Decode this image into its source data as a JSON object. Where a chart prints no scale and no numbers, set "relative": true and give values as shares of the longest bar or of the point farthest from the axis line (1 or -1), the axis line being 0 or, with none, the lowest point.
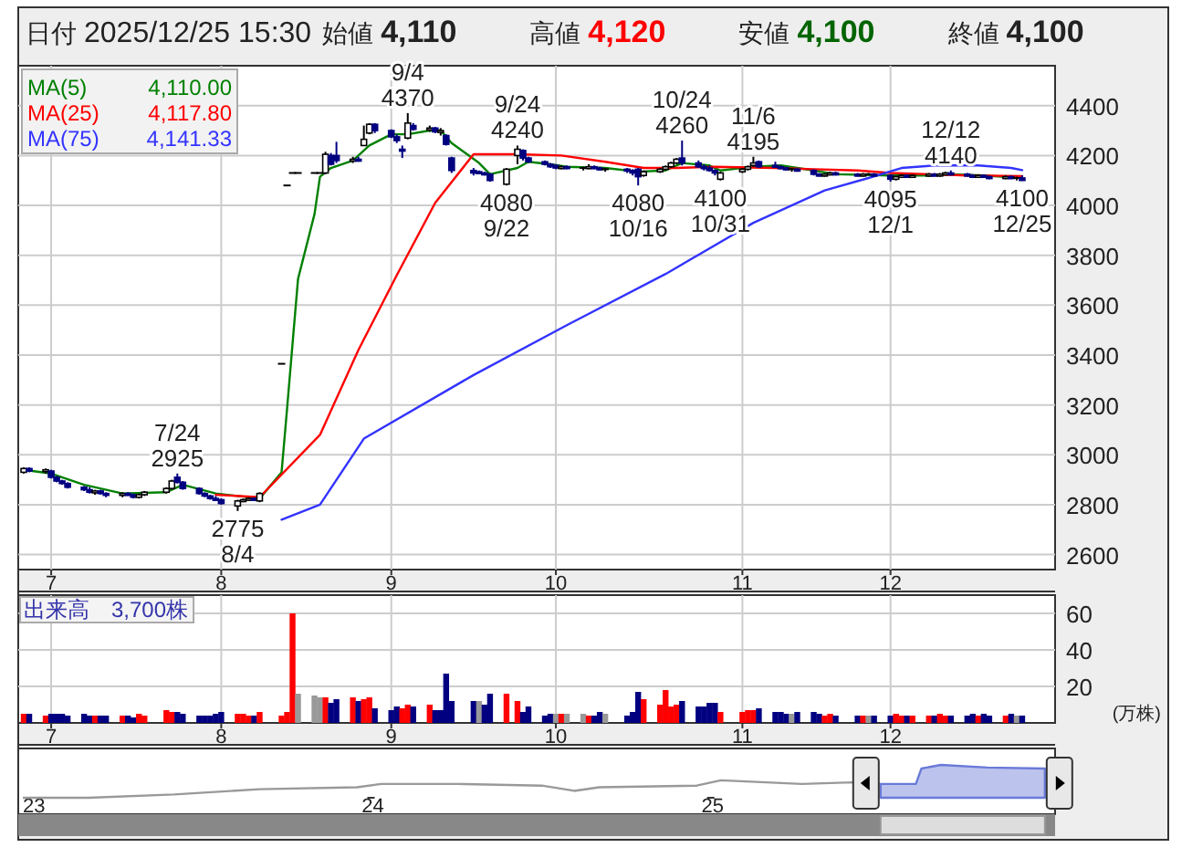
{
  "chart_data": [
    {
      "type": "other",
      "categories": [
        "日付",
        "始値",
        "高値",
        "安値",
        "終値"
      ],
      "values": [
        null,
        4110,
        4120,
        4100,
        4100
      ],
      "value_labels": [
        "2025/12/25 15:30",
        "4,110",
        "4,120",
        "4,100",
        "4,100"
      ],
      "colors": [
        "#222222",
        "#222222",
        "#ff0000",
        "#006400",
        "#222222"
      ]
    },
    {
      "type": "candlestick",
      "colors": [
        "#ffffff",
        "#000080",
        "#ffffff",
        "#000080",
        "#000080",
        "#000080",
        "#000080",
        "#000080",
        "#000080",
        "#ffffff",
        "#000080",
        "#000080",
        "#ffffff",
        "#000080",
        "#000080",
        "#ffffff",
        "#ffffff",
        "#ffffff",
        "#ffffff",
        "#000080",
        "#000080",
        "#000080",
        "#000080",
        "#000080",
        "#000080",
        "#000080",
        "#ffffff",
        "#ffffff",
        "#ffffff",
        "#000080",
        "#ffffff",
        "#000000",
        "#000000",
        "#000000",
        "#000000",
        "#000000",
        "#000000",
        "#ffffff",
        "#000080",
        "#000080",
        "#ffffff",
        "#000080",
        "#ffffff",
        "#ffffff",
        "#000080",
        "#000080",
        "#000080",
        "#000080",
        "#ffffff",
        "#000080",
        "#ffffff",
        "#000080",
        "#ffffff",
        "#000080",
        "#000080",
        "#000080",
        "#000080",
        "#000080",
        "#000080",
        "#ffffff",
        "#ffffff",
        "#000080",
        "#000080",
        "#000080",
        "#000080",
        "#000080",
        "#ffffff",
        "#000080",
        "#000000",
        "#ffffff",
        "#000080",
        "#000080",
        "#000000",
        "#000080",
        "#000080",
        "#000080",
        "#ffffff",
        "#ffffff",
        "#ffffff",
        "#ffffff",
        "#ffffff",
        "#000080",
        "#000080",
        "#000080",
        "#000080",
        "#000080",
        "#ffffff",
        "#ffffff",
        "#ffffff",
        "#ffffff",
        "#000080",
        "#000080",
        "#000080",
        "#000080",
        "#000000",
        "#000080",
        "#000080",
        "#000080",
        "#ffffff",
        "#ffffff",
        "#000080",
        "#000080",
        "#ffffff",
        "#000000",
        "#000080",
        "#000080",
        "#ffffff",
        "#ffffff",
        "#000080",
        "#ffffff",
        "#ffffff",
        "#000080",
        "#ffffff",
        "#ffffff",
        "#000080",
        "#000080",
        "#000080",
        "#ffffff",
        "#000080",
        "#000080",
        "#ffffff",
        "#000080",
        "#000000",
        "#000080"
      ],
      "x": [
        "2025-06-26",
        "2025-06-27",
        "2025-06-30",
        "2025-07-01",
        "2025-07-02",
        "2025-07-03",
        "2025-07-04",
        "2025-07-07",
        "2025-07-08",
        "2025-07-09",
        "2025-07-10",
        "2025-07-11",
        "2025-07-14",
        "2025-07-15",
        "2025-07-16",
        "2025-07-17",
        "2025-07-18",
        "2025-07-22",
        "2025-07-23",
        "2025-07-24",
        "2025-07-25",
        "2025-07-28",
        "2025-07-29",
        "2025-07-30",
        "2025-07-31",
        "2025-08-01",
        "2025-08-04",
        "2025-08-05",
        "2025-08-06",
        "2025-08-07",
        "2025-08-08",
        "2025-08-12",
        "2025-08-13",
        "2025-08-14",
        "2025-08-15",
        "2025-08-18",
        "2025-08-19",
        "2025-08-20",
        "2025-08-21",
        "2025-08-22",
        "2025-08-25",
        "2025-08-26",
        "2025-08-27",
        "2025-08-28",
        "2025-08-29",
        "2025-09-01",
        "2025-09-02",
        "2025-09-03",
        "2025-09-04",
        "2025-09-05",
        "2025-09-08",
        "2025-09-09",
        "2025-09-10",
        "2025-09-11",
        "2025-09-12",
        "2025-09-16",
        "2025-09-17",
        "2025-09-18",
        "2025-09-19",
        "2025-09-22",
        "2025-09-24",
        "2025-09-25",
        "2025-09-26",
        "2025-09-29",
        "2025-09-30",
        "2025-10-01",
        "2025-10-02",
        "2025-10-03",
        "2025-10-06",
        "2025-10-07",
        "2025-10-08",
        "2025-10-09",
        "2025-10-10",
        "2025-10-14",
        "2025-10-15",
        "2025-10-16",
        "2025-10-17",
        "2025-10-20",
        "2025-10-21",
        "2025-10-22",
        "2025-10-23",
        "2025-10-24",
        "2025-10-27",
        "2025-10-28",
        "2025-10-29",
        "2025-10-30",
        "2025-10-31",
        "2025-11-04",
        "2025-11-05",
        "2025-11-06",
        "2025-11-07",
        "2025-11-10",
        "2025-11-11",
        "2025-11-12",
        "2025-11-13",
        "2025-11-14",
        "2025-11-17",
        "2025-11-18",
        "2025-11-19",
        "2025-11-20",
        "2025-11-21",
        "2025-11-25",
        "2025-11-26",
        "2025-11-27",
        "2025-11-28",
        "2025-12-01",
        "2025-12-02",
        "2025-12-03",
        "2025-12-04",
        "2025-12-05",
        "2025-12-08",
        "2025-12-09",
        "2025-12-10",
        "2025-12-11",
        "2025-12-12",
        "2025-12-15",
        "2025-12-16",
        "2025-12-17",
        "2025-12-18",
        "2025-12-19",
        "2025-12-22",
        "2025-12-23",
        "2025-12-24",
        "2025-12-25"
      ],
      "ohlc": [
        [
          2930,
          2950,
          2925,
          2945
        ],
        [
          2945,
          2950,
          2930,
          2935
        ],
        [
          2935,
          2945,
          2925,
          2940
        ],
        [
          2935,
          2940,
          2905,
          2910
        ],
        [
          2910,
          2915,
          2890,
          2895
        ],
        [
          2895,
          2900,
          2880,
          2885
        ],
        [
          2885,
          2890,
          2865,
          2870
        ],
        [
          2870,
          2875,
          2855,
          2860
        ],
        [
          2860,
          2870,
          2845,
          2850
        ],
        [
          2850,
          2860,
          2840,
          2855
        ],
        [
          2855,
          2860,
          2840,
          2845
        ],
        [
          2845,
          2850,
          2830,
          2840
        ],
        [
          2840,
          2850,
          2830,
          2845
        ],
        [
          2845,
          2850,
          2835,
          2840
        ],
        [
          2840,
          2845,
          2825,
          2830
        ],
        [
          2830,
          2845,
          2825,
          2840
        ],
        [
          2840,
          2855,
          2835,
          2850
        ],
        [
          2850,
          2870,
          2845,
          2865
        ],
        [
          2865,
          2900,
          2860,
          2895
        ],
        [
          2910,
          2925,
          2885,
          2890
        ],
        [
          2890,
          2895,
          2860,
          2865
        ],
        [
          2865,
          2870,
          2840,
          2845
        ],
        [
          2845,
          2850,
          2830,
          2835
        ],
        [
          2835,
          2840,
          2820,
          2825
        ],
        [
          2825,
          2835,
          2815,
          2820
        ],
        [
          2820,
          2825,
          2800,
          2805
        ],
        [
          2795,
          2820,
          2775,
          2815
        ],
        [
          2815,
          2825,
          2810,
          2820
        ],
        [
          2820,
          2830,
          2815,
          2825
        ],
        [
          2825,
          2830,
          2815,
          2820
        ],
        [
          2815,
          2850,
          2810,
          2845
        ],
        [
          3365,
          3365,
          3365,
          3365
        ],
        [
          4080,
          4080,
          4080,
          4080
        ],
        [
          4130,
          4130,
          4130,
          4130
        ],
        [
          4130,
          4130,
          4130,
          4130
        ],
        [
          4130,
          4130,
          4130,
          4130
        ],
        [
          4130,
          4130,
          4130,
          4130
        ],
        [
          4130,
          4215,
          4125,
          4205
        ],
        [
          4200,
          4210,
          4160,
          4165
        ],
        [
          4200,
          4255,
          4170,
          4180
        ],
        [
          4180,
          4195,
          4170,
          4185
        ],
        [
          4185,
          4195,
          4175,
          4180
        ],
        [
          4240,
          4320,
          4240,
          4265
        ],
        [
          4290,
          4330,
          4285,
          4325
        ],
        [
          4325,
          4330,
          4290,
          4300
        ],
        [
          4300,
          4305,
          4270,
          4275
        ],
        [
          4275,
          4285,
          4250,
          4260
        ],
        [
          4225,
          4240,
          4190,
          4220
        ],
        [
          4270,
          4370,
          4265,
          4330
        ],
        [
          4320,
          4330,
          4300,
          4305
        ],
        [
          4305,
          4320,
          4295,
          4310
        ],
        [
          4310,
          4315,
          4290,
          4295
        ],
        [
          4295,
          4310,
          4280,
          4300
        ],
        [
          4280,
          4285,
          4240,
          4245
        ],
        [
          4190,
          4195,
          4130,
          4140
        ],
        [
          4140,
          4150,
          4120,
          4130
        ],
        [
          4135,
          4140,
          4125,
          4130
        ],
        [
          4130,
          4135,
          4120,
          4125
        ],
        [
          4125,
          4130,
          4095,
          4100
        ],
        [
          4085,
          4150,
          4080,
          4145
        ],
        [
          4200,
          4240,
          4165,
          4225
        ],
        [
          4220,
          4225,
          4180,
          4190
        ],
        [
          4190,
          4195,
          4170,
          4175
        ],
        [
          4175,
          4180,
          4160,
          4165
        ],
        [
          4165,
          4170,
          4150,
          4155
        ],
        [
          4160,
          4165,
          4145,
          4150
        ],
        [
          4150,
          4160,
          4145,
          4155
        ],
        [
          4155,
          4160,
          4145,
          4150
        ],
        [
          4150,
          4155,
          4140,
          4150
        ],
        [
          4150,
          4165,
          4145,
          4155
        ],
        [
          4155,
          4160,
          4145,
          4150
        ],
        [
          4150,
          4155,
          4140,
          4145
        ],
        [
          4145,
          4150,
          4135,
          4145
        ],
        [
          4145,
          4150,
          4130,
          4140
        ],
        [
          4140,
          4145,
          4120,
          4130
        ],
        [
          4145,
          4150,
          4080,
          4115
        ],
        [
          4120,
          4140,
          4115,
          4135
        ],
        [
          4135,
          4150,
          4130,
          4145
        ],
        [
          4145,
          4160,
          4140,
          4155
        ],
        [
          4155,
          4175,
          4150,
          4170
        ],
        [
          4170,
          4190,
          4165,
          4185
        ],
        [
          4190,
          4260,
          4160,
          4170
        ],
        [
          4170,
          4180,
          4150,
          4155
        ],
        [
          4155,
          4165,
          4140,
          4150
        ],
        [
          4150,
          4160,
          4135,
          4140
        ],
        [
          4140,
          4145,
          4120,
          4130
        ],
        [
          4105,
          4135,
          4100,
          4130
        ],
        [
          4135,
          4150,
          4130,
          4145
        ],
        [
          4145,
          4160,
          4140,
          4155
        ],
        [
          4160,
          4195,
          4155,
          4170
        ],
        [
          4175,
          4180,
          4150,
          4155
        ],
        [
          4160,
          4175,
          4150,
          4155
        ],
        [
          4155,
          4160,
          4145,
          4150
        ],
        [
          4150,
          4155,
          4140,
          4145
        ],
        [
          4145,
          4150,
          4135,
          4145
        ],
        [
          4145,
          4150,
          4135,
          4140
        ],
        [
          4140,
          4145,
          4120,
          4125
        ],
        [
          4125,
          4130,
          4115,
          4120
        ],
        [
          4120,
          4130,
          4115,
          4125
        ],
        [
          4125,
          4135,
          4120,
          4130
        ],
        [
          4130,
          4135,
          4120,
          4125
        ],
        [
          4125,
          4130,
          4115,
          4120
        ],
        [
          4120,
          4130,
          4115,
          4125
        ],
        [
          4125,
          4130,
          4120,
          4125
        ],
        [
          4125,
          4130,
          4115,
          4120
        ],
        [
          4120,
          4125,
          4095,
          4105
        ],
        [
          4105,
          4120,
          4100,
          4115
        ],
        [
          4115,
          4125,
          4110,
          4120
        ],
        [
          4120,
          4125,
          4110,
          4115
        ],
        [
          4115,
          4125,
          4110,
          4120
        ],
        [
          4120,
          4130,
          4115,
          4125
        ],
        [
          4125,
          4130,
          4115,
          4120
        ],
        [
          4120,
          4130,
          4115,
          4125
        ],
        [
          4125,
          4135,
          4120,
          4130
        ],
        [
          4130,
          4140,
          4120,
          4125
        ],
        [
          4125,
          4130,
          4115,
          4120
        ],
        [
          4120,
          4125,
          4110,
          4115
        ],
        [
          4115,
          4125,
          4110,
          4120
        ],
        [
          4120,
          4125,
          4110,
          4115
        ],
        [
          4115,
          4120,
          4105,
          4110
        ],
        [
          4110,
          4120,
          4105,
          4115
        ],
        [
          4115,
          4120,
          4105,
          4110
        ],
        [
          4110,
          4115,
          4100,
          4110
        ],
        [
          4110,
          4120,
          4100,
          4100
        ]
      ],
      "series": [
        {
          "type": "line",
          "name": "MA(5) 4,110.00",
          "color": "#008000",
          "x": [
            "2025-06-26",
            "2025-07-01",
            "2025-07-07",
            "2025-07-14",
            "2025-07-22",
            "2025-07-25",
            "2025-07-31",
            "2025-08-08",
            "2025-08-12",
            "2025-08-13",
            "2025-08-14",
            "2025-08-15",
            "2025-08-18",
            "2025-08-19",
            "2025-08-21",
            "2025-08-25",
            "2025-08-28",
            "2025-09-01",
            "2025-09-04",
            "2025-09-08",
            "2025-09-10",
            "2025-09-12",
            "2025-09-17",
            "2025-09-19",
            "2025-09-24",
            "2025-09-26",
            "2025-09-30",
            "2025-10-03",
            "2025-10-10",
            "2025-10-16",
            "2025-10-21",
            "2025-10-24",
            "2025-10-29",
            "2025-10-31",
            "2025-11-06",
            "2025-11-11",
            "2025-11-17",
            "2025-11-21",
            "2025-12-01",
            "2025-12-08",
            "2025-12-12",
            "2025-12-18",
            "2025-12-25"
          ],
          "values": [
            2940,
            2925,
            2880,
            2845,
            2850,
            2880,
            2845,
            2825,
            2930,
            3185,
            3445,
            3705,
            3965,
            4115,
            4150,
            4180,
            4240,
            4285,
            4285,
            4300,
            4300,
            4250,
            4170,
            4125,
            4150,
            4175,
            4165,
            4155,
            4150,
            4135,
            4140,
            4170,
            4160,
            4140,
            4155,
            4160,
            4140,
            4125,
            4120,
            4120,
            4125,
            4120,
            4110
          ]
        },
        {
          "type": "line",
          "name": "MA(25) 4,117.80",
          "color": "#ff0000",
          "x": [
            "2025-07-31",
            "2025-08-08",
            "2025-08-19",
            "2025-08-26",
            "2025-09-02",
            "2025-09-09",
            "2025-09-16",
            "2025-09-24",
            "2025-10-02",
            "2025-10-10",
            "2025-10-17",
            "2025-10-23",
            "2025-10-30",
            "2025-11-10",
            "2025-11-17",
            "2025-11-25",
            "2025-12-01",
            "2025-12-08",
            "2025-12-15",
            "2025-12-25"
          ],
          "values": [
            2840,
            2830,
            3080,
            3420,
            3720,
            4010,
            4205,
            4205,
            4200,
            4175,
            4150,
            4150,
            4155,
            4150,
            4145,
            4140,
            4130,
            4125,
            4120,
            4117.8
          ]
        },
        {
          "type": "line",
          "name": "MA(75) 4,141.33",
          "color": "#3333ff",
          "x": [
            "2025-08-12",
            "2025-08-19",
            "2025-08-27",
            "2025-09-16",
            "2025-10-03",
            "2025-10-21",
            "2025-11-06",
            "2025-11-19",
            "2025-11-27",
            "2025-12-03",
            "2025-12-09",
            "2025-12-17",
            "2025-12-23",
            "2025-12-25"
          ],
          "values": [
            2740,
            2800,
            3065,
            3320,
            3520,
            3725,
            3930,
            4060,
            4110,
            4150,
            4160,
            4160,
            4150,
            4141.33
          ]
        }
      ],
      "xlim": [
        "2025-06-25",
        "2025-12-31"
      ],
      "xticks": [
        {
          "value": "2025-07-01",
          "label": "7"
        },
        {
          "value": "2025-08-01",
          "label": "8"
        },
        {
          "value": "2025-09-01",
          "label": "9"
        },
        {
          "value": "2025-10-01",
          "label": "10"
        },
        {
          "value": "2025-11-04",
          "label": "11"
        },
        {
          "value": "2025-12-01",
          "label": "12"
        }
      ],
      "ylim": [
        2540,
        4560
      ],
      "yticks": [
        2600,
        2800,
        3000,
        3200,
        3400,
        3600,
        3800,
        4000,
        4200,
        4400
      ],
      "grid": true,
      "annotations": [
        {
          "text": "7/24\n2925",
          "x": "2025-07-24",
          "y": 2925
        },
        {
          "text": "2775\n8/4",
          "x": "2025-08-04",
          "y": 2775
        },
        {
          "text": "9/4\n4370",
          "x": "2025-09-04",
          "y": 4370
        },
        {
          "text": "4080\n9/22",
          "x": "2025-09-22",
          "y": 4080
        },
        {
          "text": "9/24\n4240",
          "x": "2025-09-24",
          "y": 4240
        },
        {
          "text": "4080\n10/16",
          "x": "2025-10-16",
          "y": 4080
        },
        {
          "text": "10/24\n4260",
          "x": "2025-10-24",
          "y": 4260
        },
        {
          "text": "4100\n10/31",
          "x": "2025-10-31",
          "y": 4100
        },
        {
          "text": "11/6\n4195",
          "x": "2025-11-06",
          "y": 4195
        },
        {
          "text": "4095\n12/1",
          "x": "2025-12-01",
          "y": 4095
        },
        {
          "text": "12/12\n4140",
          "x": "2025-12-12",
          "y": 4140
        },
        {
          "text": "4100\n12/25",
          "x": "2025-12-25",
          "y": 4100
        }
      ]
    },
    {
      "type": "bar",
      "title": "出来高　3,700株",
      "ylabel": "(万株)",
      "x": [
        "2025-06-26",
        "2025-06-27",
        "2025-06-30",
        "2025-07-01",
        "2025-07-02",
        "2025-07-03",
        "2025-07-04",
        "2025-07-07",
        "2025-07-08",
        "2025-07-09",
        "2025-07-10",
        "2025-07-11",
        "2025-07-14",
        "2025-07-15",
        "2025-07-16",
        "2025-07-17",
        "2025-07-18",
        "2025-07-22",
        "2025-07-23",
        "2025-07-24",
        "2025-07-25",
        "2025-07-28",
        "2025-07-29",
        "2025-07-30",
        "2025-07-31",
        "2025-08-01",
        "2025-08-04",
        "2025-08-05",
        "2025-08-06",
        "2025-08-07",
        "2025-08-08",
        "2025-08-12",
        "2025-08-13",
        "2025-08-14",
        "2025-08-15",
        "2025-08-18",
        "2025-08-19",
        "2025-08-20",
        "2025-08-21",
        "2025-08-22",
        "2025-08-25",
        "2025-08-26",
        "2025-08-27",
        "2025-08-28",
        "2025-08-29",
        "2025-09-01",
        "2025-09-02",
        "2025-09-03",
        "2025-09-04",
        "2025-09-05",
        "2025-09-08",
        "2025-09-09",
        "2025-09-10",
        "2025-09-11",
        "2025-09-12",
        "2025-09-16",
        "2025-09-17",
        "2025-09-18",
        "2025-09-19",
        "2025-09-22",
        "2025-09-24",
        "2025-09-25",
        "2025-09-26",
        "2025-09-29",
        "2025-09-30",
        "2025-10-01",
        "2025-10-02",
        "2025-10-03",
        "2025-10-06",
        "2025-10-07",
        "2025-10-08",
        "2025-10-09",
        "2025-10-10",
        "2025-10-14",
        "2025-10-15",
        "2025-10-16",
        "2025-10-17",
        "2025-10-20",
        "2025-10-21",
        "2025-10-22",
        "2025-10-23",
        "2025-10-24",
        "2025-10-27",
        "2025-10-28",
        "2025-10-29",
        "2025-10-30",
        "2025-10-31",
        "2025-11-04",
        "2025-11-05",
        "2025-11-06",
        "2025-11-07",
        "2025-11-10",
        "2025-11-11",
        "2025-11-12",
        "2025-11-13",
        "2025-11-14",
        "2025-11-17",
        "2025-11-18",
        "2025-11-19",
        "2025-11-20",
        "2025-11-21",
        "2025-11-25",
        "2025-11-26",
        "2025-11-27",
        "2025-11-28",
        "2025-12-01",
        "2025-12-02",
        "2025-12-03",
        "2025-12-04",
        "2025-12-05",
        "2025-12-08",
        "2025-12-09",
        "2025-12-10",
        "2025-12-11",
        "2025-12-12",
        "2025-12-15",
        "2025-12-16",
        "2025-12-17",
        "2025-12-18",
        "2025-12-19",
        "2025-12-22",
        "2025-12-23",
        "2025-12-24",
        "2025-12-25"
      ],
      "values": [
        5,
        5,
        4,
        5,
        5,
        5,
        4,
        5,
        4,
        4,
        4,
        4,
        4,
        4,
        3,
        5,
        4,
        7,
        6,
        6,
        5,
        4,
        4,
        4,
        5,
        6,
        5,
        5,
        4,
        4,
        6,
        4,
        6,
        60,
        16,
        15,
        14,
        14,
        11,
        13,
        14,
        12,
        13,
        14,
        8,
        7,
        9,
        8,
        10,
        9,
        10,
        7,
        7,
        27,
        12,
        12,
        12,
        10,
        16,
        16,
        12,
        6,
        9,
        4,
        5,
        5,
        5,
        5,
        5,
        4,
        4,
        6,
        5,
        4,
        6,
        17,
        13,
        10,
        18,
        9,
        10,
        12,
        9,
        9,
        11,
        11,
        6,
        6,
        7,
        7,
        8,
        6,
        6,
        5,
        5,
        6,
        6,
        5,
        4,
        5,
        4,
        4,
        4,
        4,
        4,
        4,
        5,
        4,
        4,
        4,
        4,
        4,
        5,
        4,
        4,
        4,
        5,
        4,
        5,
        4,
        4,
        5,
        4,
        4
      ],
      "colors": [
        "#ff0000",
        "#000080",
        "#ff0000",
        "#000080",
        "#000080",
        "#000080",
        "#000080",
        "#000080",
        "#000080",
        "#ff0000",
        "#000080",
        "#000080",
        "#ff0000",
        "#000080",
        "#000080",
        "#ff0000",
        "#ff0000",
        "#ff0000",
        "#ff0000",
        "#000080",
        "#000080",
        "#000080",
        "#000080",
        "#000080",
        "#000080",
        "#000080",
        "#ff0000",
        "#ff0000",
        "#ff0000",
        "#000080",
        "#ff0000",
        "#ff0000",
        "#ff0000",
        "#ff0000",
        "#999999",
        "#999999",
        "#999999",
        "#ff0000",
        "#000080",
        "#000080",
        "#ff0000",
        "#000080",
        "#ff0000",
        "#ff0000",
        "#000080",
        "#000080",
        "#000080",
        "#ff0000",
        "#ff0000",
        "#000080",
        "#ff0000",
        "#000080",
        "#000080",
        "#000080",
        "#000080",
        "#000080",
        "#999999",
        "#000080",
        "#000080",
        "#ff0000",
        "#ff0000",
        "#000080",
        "#000080",
        "#000080",
        "#000080",
        "#999999",
        "#ff0000",
        "#999999",
        "#999999",
        "#ff0000",
        "#000080",
        "#000080",
        "#999999",
        "#000080",
        "#000080",
        "#000080",
        "#ff0000",
        "#ff0000",
        "#ff0000",
        "#ff0000",
        "#ff0000",
        "#000080",
        "#000080",
        "#000080",
        "#000080",
        "#000080",
        "#ff0000",
        "#ff0000",
        "#ff0000",
        "#ff0000",
        "#000080",
        "#000080",
        "#000080",
        "#000080",
        "#999999",
        "#000080",
        "#000080",
        "#000080",
        "#ff0000",
        "#ff0000",
        "#000080",
        "#000080",
        "#ff0000",
        "#999999",
        "#000080",
        "#000080",
        "#ff0000",
        "#ff0000",
        "#000080",
        "#ff0000",
        "#ff0000",
        "#000080",
        "#ff0000",
        "#ff0000",
        "#000080",
        "#000080",
        "#000080",
        "#ff0000",
        "#000080",
        "#000080",
        "#ff0000",
        "#000080",
        "#999999",
        "#000080"
      ],
      "xlim": [
        "2025-06-25",
        "2025-12-31"
      ],
      "xticks": [
        {
          "value": "2025-07-01",
          "label": "7"
        },
        {
          "value": "2025-08-01",
          "label": "8"
        },
        {
          "value": "2025-09-01",
          "label": "9"
        },
        {
          "value": "2025-10-01",
          "label": "10"
        },
        {
          "value": "2025-11-04",
          "label": "11"
        },
        {
          "value": "2025-12-01",
          "label": "12"
        }
      ],
      "ylim": [
        0,
        70
      ],
      "yticks": [
        20,
        40,
        60
      ],
      "grid": true
    },
    {
      "type": "line",
      "relative": true,
      "series": [
        {
          "type": "line",
          "color": "#999999",
          "x": [
            "2022-12-20",
            "2023-03-01",
            "2023-06-01",
            "2023-09-01",
            "2023-12-15",
            "2024-01-10",
            "2024-04-01",
            "2024-07-01",
            "2024-08-05",
            "2024-09-01",
            "2024-12-15",
            "2025-01-10",
            "2025-04-07",
            "2025-06-01",
            "2025-07-01"
          ],
          "values": [
            0,
            0,
            0.1,
            0.26,
            0.32,
            0.42,
            0.42,
            0.37,
            0.21,
            0.32,
            0.37,
            0.53,
            0.42,
            0.47,
            0.42
          ]
        },
        {
          "type": "area",
          "color": "#6a7ad8",
          "x": [
            "2025-07-01",
            "2025-08-08",
            "2025-08-14",
            "2025-09-04",
            "2025-10-24",
            "2025-12-25"
          ],
          "values": [
            0.42,
            0.42,
            0.89,
            1,
            0.92,
            0.89
          ]
        }
      ],
      "xlim": [
        "2022-12-15",
        "2026-01-05"
      ],
      "xticks": [
        {
          "value": "2023-01-01",
          "label": "23"
        },
        {
          "value": "2024-01-01",
          "label": "24"
        },
        {
          "value": "2025-01-01",
          "label": "25"
        }
      ]
    }
  ]
}
